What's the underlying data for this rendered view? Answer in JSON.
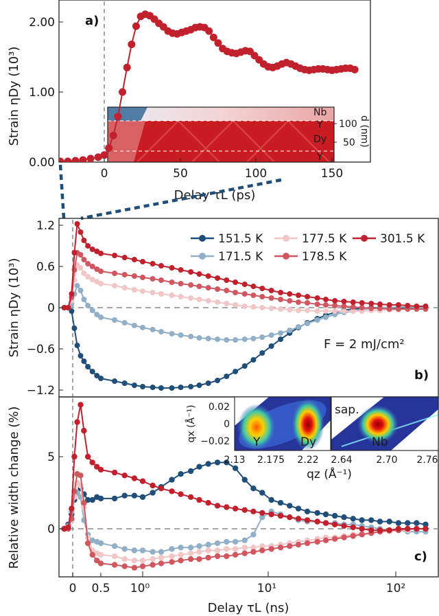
{
  "colors": {
    "s151": "#1f4e79",
    "s171": "#92afc8",
    "s177": "#f0c6c6",
    "s178": "#d0565f",
    "s301": "#c0212d",
    "zero": "#888888"
  },
  "panel_a": {
    "letter": "a)",
    "xlabel": "Delay τL (ps)",
    "ylabel": "Strain ηDy (10³)",
    "xticks": [
      "0",
      "50",
      "100",
      "150"
    ],
    "yticks": [
      "0.00",
      "1.00",
      "2.00"
    ],
    "inset": {
      "layers_right": [
        "Nb",
        "Y",
        "Dy",
        "Y"
      ],
      "axis_label": "d (nm)",
      "axis_ticks": [
        "100",
        "50"
      ]
    }
  },
  "panel_b": {
    "letter": "b)",
    "ylabel": "Strain ηDy (10³)",
    "yticks": [
      "1.2",
      "0.6",
      "0",
      "−0.6",
      "−1.2"
    ],
    "fluence": "F = 2 mJ/cm²",
    "legend": [
      "151.5 K",
      "177.5 K",
      "301.5 K",
      "171.5 K",
      "178.5 K"
    ]
  },
  "panel_c": {
    "letter": "c)",
    "ylabel": "Relative width change (%)",
    "yticks": [
      "5",
      "0"
    ],
    "xlabel": "Delay τL (ns)",
    "xticks": [
      "0",
      "0.5",
      "10⁰",
      "10¹",
      "10²"
    ],
    "inset": {
      "ylabel": "qx (Å⁻¹)",
      "xlabel": "qz (Å⁻¹)",
      "yticks": [
        "0.02",
        "0",
        "−0.02"
      ],
      "left_xticks": [
        "2.13",
        "2.175",
        "2.22"
      ],
      "right_xticks": [
        "2.64",
        "2.70",
        "2.76"
      ],
      "left_labels": [
        "Y",
        "Dy"
      ],
      "right_labels": [
        "sap.",
        "Nb"
      ]
    }
  },
  "chart_data": [
    {
      "type": "line",
      "title": "a)",
      "xlabel": "Delay τL (ps)",
      "ylabel": "Strain ηDy (10³)",
      "xlim": [
        -30,
        175
      ],
      "ylim": [
        0,
        2.35
      ],
      "series": [
        {
          "name": "301.5 K",
          "x": [
            -29,
            -24,
            -19,
            -14,
            -9,
            -4,
            0,
            3,
            6,
            9,
            12,
            15,
            18,
            21,
            24,
            27,
            30,
            33,
            36,
            39,
            42,
            45,
            48,
            51,
            54,
            57,
            60,
            63,
            66,
            69,
            72,
            75,
            78,
            81,
            84,
            87,
            90,
            93,
            96,
            99,
            102,
            105,
            108,
            111,
            114,
            117,
            120,
            123,
            126,
            129,
            132,
            135,
            138,
            141,
            144,
            147,
            150,
            153,
            156,
            159,
            162,
            165
          ],
          "y": [
            0.01,
            0.01,
            0.02,
            0.03,
            0.05,
            0.07,
            0.1,
            0.2,
            0.38,
            0.65,
            1.0,
            1.35,
            1.68,
            1.94,
            2.08,
            2.11,
            2.09,
            2.04,
            1.98,
            1.93,
            1.87,
            1.84,
            1.83,
            1.85,
            1.87,
            1.89,
            1.92,
            1.93,
            1.92,
            1.87,
            1.78,
            1.7,
            1.62,
            1.58,
            1.56,
            1.55,
            1.57,
            1.59,
            1.58,
            1.52,
            1.46,
            1.4,
            1.36,
            1.35,
            1.37,
            1.4,
            1.42,
            1.4,
            1.37,
            1.34,
            1.32,
            1.31,
            1.32,
            1.33,
            1.33,
            1.32,
            1.31,
            1.32,
            1.33,
            1.34,
            1.34,
            1.32
          ]
        }
      ]
    },
    {
      "type": "line",
      "title": "b)",
      "xlabel": "Delay τL (ns)",
      "ylabel": "Strain ηDy (10³)",
      "ylim": [
        -1.3,
        1.3
      ],
      "note": "x positions are in the same axis scale as panel c (linear up to 0.5 ns, log above)",
      "x": [
        -0.15,
        -0.08,
        -0.02,
        0.03,
        0.08,
        0.14,
        0.2,
        0.27,
        0.35,
        0.43,
        0.5,
        0.6,
        0.72,
        0.86,
        1.0,
        1.2,
        1.4,
        1.7,
        2.0,
        2.4,
        2.8,
        3.3,
        3.9,
        4.6,
        5.4,
        6.4,
        7.5,
        8.8,
        10.4,
        12.3,
        14.5,
        17,
        20,
        24,
        28,
        33,
        39,
        46,
        54,
        64,
        75,
        89,
        105,
        124,
        146,
        172
      ],
      "series": [
        {
          "name": "151.5 K",
          "values": [
            0,
            0,
            -0.05,
            -0.3,
            -0.55,
            -0.7,
            -0.78,
            -0.86,
            -0.93,
            -0.99,
            -1.03,
            -1.07,
            -1.1,
            -1.13,
            -1.15,
            -1.16,
            -1.17,
            -1.17,
            -1.16,
            -1.15,
            -1.13,
            -1.1,
            -1.06,
            -1.0,
            -0.93,
            -0.85,
            -0.76,
            -0.66,
            -0.56,
            -0.46,
            -0.37,
            -0.29,
            -0.22,
            -0.16,
            -0.11,
            -0.07,
            -0.04,
            -0.02,
            -0.01,
            0,
            0,
            0,
            0,
            0,
            0,
            0
          ]
        },
        {
          "name": "171.5 K",
          "values": [
            0,
            0,
            0.05,
            0.2,
            0.32,
            0.25,
            0.12,
            0.03,
            -0.04,
            -0.1,
            -0.14,
            -0.18,
            -0.22,
            -0.26,
            -0.29,
            -0.32,
            -0.35,
            -0.38,
            -0.4,
            -0.42,
            -0.44,
            -0.45,
            -0.46,
            -0.47,
            -0.47,
            -0.46,
            -0.45,
            -0.43,
            -0.4,
            -0.37,
            -0.33,
            -0.28,
            -0.23,
            -0.18,
            -0.14,
            -0.1,
            -0.07,
            -0.05,
            -0.03,
            -0.01,
            0,
            0,
            0.01,
            0.01,
            0,
            0
          ]
        },
        {
          "name": "177.5 K",
          "values": [
            0,
            0,
            0.1,
            0.4,
            0.62,
            0.58,
            0.5,
            0.45,
            0.41,
            0.38,
            0.35,
            0.32,
            0.29,
            0.26,
            0.24,
            0.22,
            0.2,
            0.18,
            0.16,
            0.14,
            0.12,
            0.1,
            0.08,
            0.06,
            0.04,
            0.02,
            0.01,
            0,
            -0.01,
            -0.02,
            -0.03,
            -0.04,
            -0.04,
            -0.05,
            -0.05,
            -0.05,
            -0.05,
            -0.05,
            -0.05,
            -0.04,
            -0.04,
            -0.03,
            -0.03,
            -0.02,
            -0.02,
            -0.02
          ]
        },
        {
          "name": "178.5 K",
          "values": [
            0,
            0,
            0.15,
            0.55,
            0.8,
            0.77,
            0.7,
            0.64,
            0.6,
            0.56,
            0.53,
            0.5,
            0.48,
            0.46,
            0.44,
            0.42,
            0.4,
            0.37,
            0.35,
            0.33,
            0.31,
            0.29,
            0.27,
            0.25,
            0.22,
            0.2,
            0.18,
            0.16,
            0.14,
            0.12,
            0.1,
            0.08,
            0.07,
            0.05,
            0.04,
            0.03,
            0.02,
            0.01,
            0,
            -0.01,
            -0.01,
            -0.02,
            -0.02,
            -0.02,
            -0.02,
            -0.02
          ]
        },
        {
          "name": "301.5 K",
          "values": [
            0,
            0,
            0.2,
            0.8,
            1.22,
            1.1,
            0.98,
            0.9,
            0.85,
            0.82,
            0.79,
            0.76,
            0.73,
            0.7,
            0.67,
            0.64,
            0.61,
            0.58,
            0.55,
            0.52,
            0.49,
            0.46,
            0.43,
            0.4,
            0.37,
            0.34,
            0.31,
            0.28,
            0.25,
            0.22,
            0.2,
            0.18,
            0.16,
            0.14,
            0.12,
            0.1,
            0.09,
            0.08,
            0.07,
            0.06,
            0.05,
            0.04,
            0.04,
            0.03,
            0.02,
            0.02
          ]
        }
      ]
    },
    {
      "type": "line",
      "title": "c)",
      "xlabel": "Delay τL (ns)",
      "ylabel": "Relative width change (%)",
      "ylim": [
        -3.2,
        8.8
      ],
      "x": [
        -0.15,
        -0.08,
        -0.02,
        0.03,
        0.08,
        0.14,
        0.2,
        0.27,
        0.35,
        0.43,
        0.5,
        0.6,
        0.72,
        0.86,
        1.0,
        1.2,
        1.4,
        1.7,
        2.0,
        2.4,
        2.8,
        3.3,
        3.9,
        4.6,
        5.4,
        6.4,
        7.5,
        8.8,
        10.4,
        12.3,
        14.5,
        17,
        20,
        24,
        28,
        33,
        39,
        46,
        54,
        64,
        75,
        89,
        105,
        124,
        146,
        172
      ],
      "series": [
        {
          "name": "151.5 K",
          "values": [
            0,
            0.3,
            1.0,
            2.0,
            2.5,
            2.8,
            2.4,
            2.0,
            2.0,
            2.2,
            2.1,
            2.1,
            2.3,
            2.3,
            2.2,
            2.5,
            2.9,
            3.4,
            3.8,
            4.0,
            4.3,
            4.5,
            4.6,
            4.6,
            4.2,
            3.4,
            2.8,
            2.5,
            2.0,
            1.8,
            1.6,
            1.4,
            1.2,
            1.1,
            1.0,
            0.9,
            0.8,
            0.7,
            0.6,
            0.6,
            0.5,
            0.5,
            0.4,
            0.4,
            0.4,
            0.3
          ]
        },
        {
          "name": "171.5 K",
          "values": [
            0,
            0.2,
            1.2,
            2.3,
            2.5,
            2.2,
            0.6,
            -0.4,
            -0.8,
            -0.9,
            -1.0,
            -1.2,
            -1.4,
            -1.5,
            -1.5,
            -1.6,
            -1.6,
            -1.4,
            -1.3,
            -1.3,
            -1.2,
            -1.1,
            -1.0,
            -0.9,
            -0.9,
            -0.8,
            -0.4,
            0.8,
            1.2,
            1.0,
            0.8,
            0.6,
            0.5,
            0.5,
            0.4,
            0.4,
            0.3,
            0.3,
            0.2,
            0.1,
            0,
            -0.1,
            -0.1,
            -0.2,
            -0.2,
            -0.2
          ]
        },
        {
          "name": "177.5 K",
          "values": [
            0,
            0,
            0.6,
            2.2,
            3.2,
            3.0,
            1.5,
            -0.6,
            -1.5,
            -1.7,
            -1.8,
            -1.9,
            -2.1,
            -2.2,
            -2.2,
            -2.1,
            -2.0,
            -1.9,
            -1.8,
            -1.7,
            -1.6,
            -1.5,
            -1.5,
            -1.4,
            -1.4,
            -1.3,
            -1.3,
            -1.2,
            -1.2,
            -1.1,
            -1.0,
            -0.9,
            -0.8,
            -0.7,
            -0.6,
            -0.6,
            -0.5,
            -0.4,
            -0.3,
            -0.3,
            -0.2,
            -0.2,
            -0.1,
            -0.1,
            0,
            0
          ]
        },
        {
          "name": "178.5 K",
          "values": [
            0,
            0,
            0.7,
            2.6,
            3.8,
            3.7,
            1.8,
            -1.0,
            -1.8,
            -2.2,
            -2.4,
            -2.5,
            -2.6,
            -2.7,
            -2.6,
            -2.5,
            -2.4,
            -2.3,
            -2.2,
            -2.1,
            -2.1,
            -2.0,
            -1.9,
            -1.9,
            -1.8,
            -1.7,
            -1.6,
            -1.5,
            -1.4,
            -1.3,
            -1.2,
            -1.1,
            -1.0,
            -0.9,
            -0.8,
            -0.7,
            -0.6,
            -0.5,
            -0.4,
            -0.3,
            -0.2,
            -0.1,
            -0.1,
            0,
            0,
            0
          ]
        },
        {
          "name": "301.5 K",
          "values": [
            0,
            0.1,
            1.4,
            5.0,
            7.4,
            8.6,
            6.8,
            5.0,
            4.6,
            4.3,
            4.1,
            3.9,
            3.7,
            3.5,
            3.3,
            3.0,
            2.8,
            2.6,
            2.4,
            2.2,
            2.0,
            1.8,
            1.6,
            1.5,
            1.4,
            1.3,
            1.2,
            1.1,
            1.0,
            0.9,
            0.8,
            0.7,
            0.6,
            0.5,
            0.4,
            0.3,
            0.2,
            0.1,
            0,
            -0.1,
            -0.1,
            -0.1,
            0,
            0,
            0,
            0
          ]
        }
      ]
    }
  ]
}
